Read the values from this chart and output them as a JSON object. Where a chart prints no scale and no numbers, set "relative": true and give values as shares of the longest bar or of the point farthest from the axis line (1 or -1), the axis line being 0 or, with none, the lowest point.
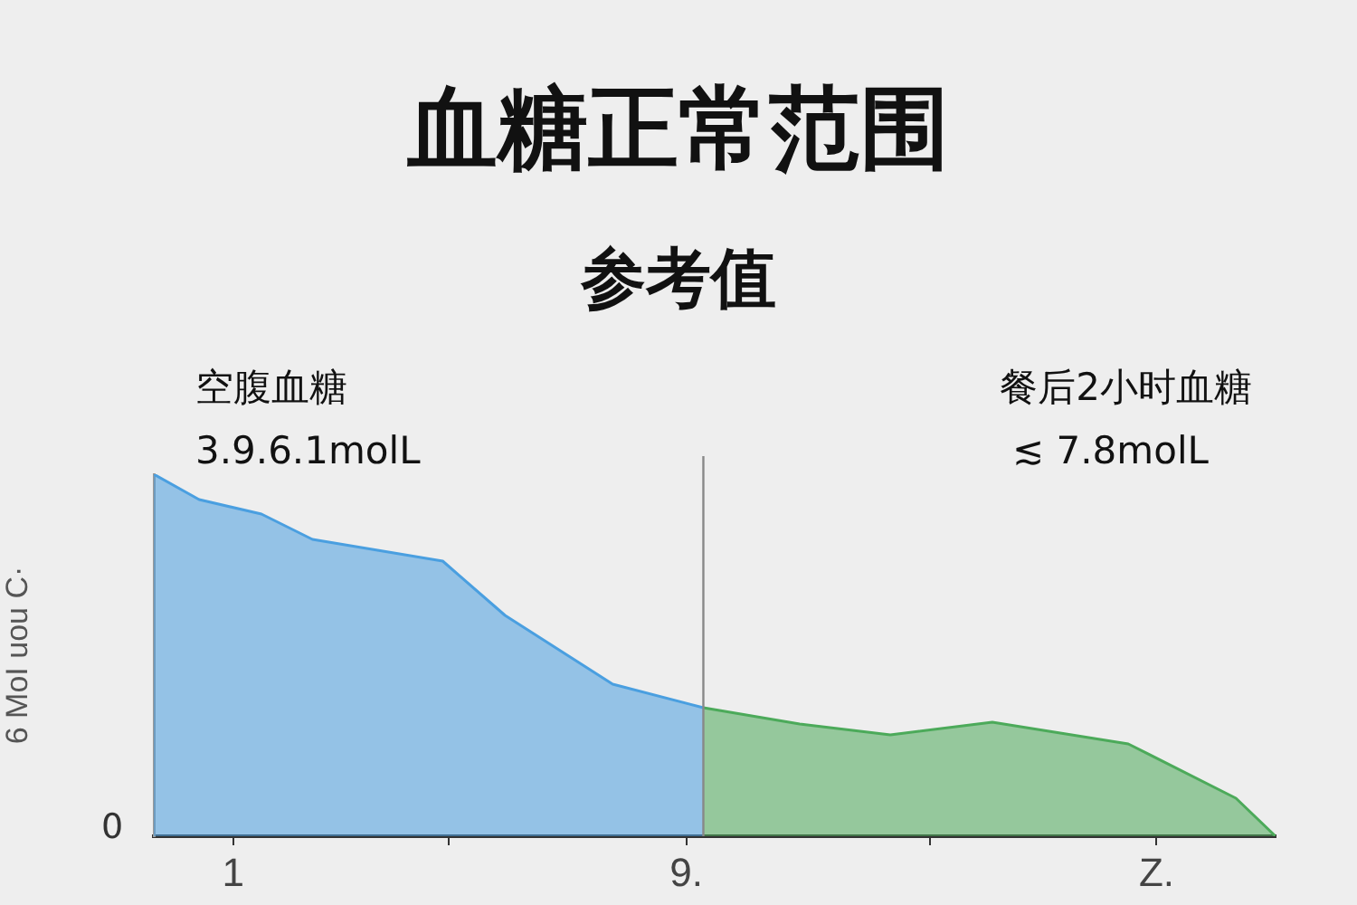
{
  "chart_data": {
    "type": "area",
    "title": "血糖正常范围",
    "subtitle": "参考值",
    "ylabel": "6 MoI uou C·",
    "relative": true,
    "annotations": [
      "空腹血糖",
      "3.9.6.1molL",
      "餐后2小时血糖",
      "≲ 7.8molL",
      "0"
    ],
    "xlim": [
      -0.4,
      19.4
    ],
    "xticks": [
      {
        "value": 1,
        "label": "1"
      },
      {
        "value": 4.8,
        "label": null
      },
      {
        "value": 9,
        "label": "9."
      },
      {
        "value": 13.3,
        "label": null
      },
      {
        "value": 17.3,
        "label": "Z."
      }
    ],
    "series": [
      {
        "color": "#4a9fe0",
        "x": [
          -0.4,
          0.4,
          1.5,
          2.4,
          4.7,
          5.8,
          7.7,
          9.3
        ],
        "values": [
          1.0,
          0.93,
          0.89,
          0.82,
          0.76,
          0.61,
          0.42,
          0.355
        ]
      },
      {
        "color": "#4caa5a",
        "x": [
          9.3,
          11.0,
          12.6,
          14.4,
          16.8,
          18.7,
          19.4
        ],
        "values": [
          0.355,
          0.31,
          0.28,
          0.315,
          0.255,
          0.105,
          0
        ]
      }
    ],
    "ref_lines": [
      {
        "axis": "x",
        "value": 9.3,
        "color": "#888888"
      }
    ],
    "grid": false,
    "legend": false
  }
}
